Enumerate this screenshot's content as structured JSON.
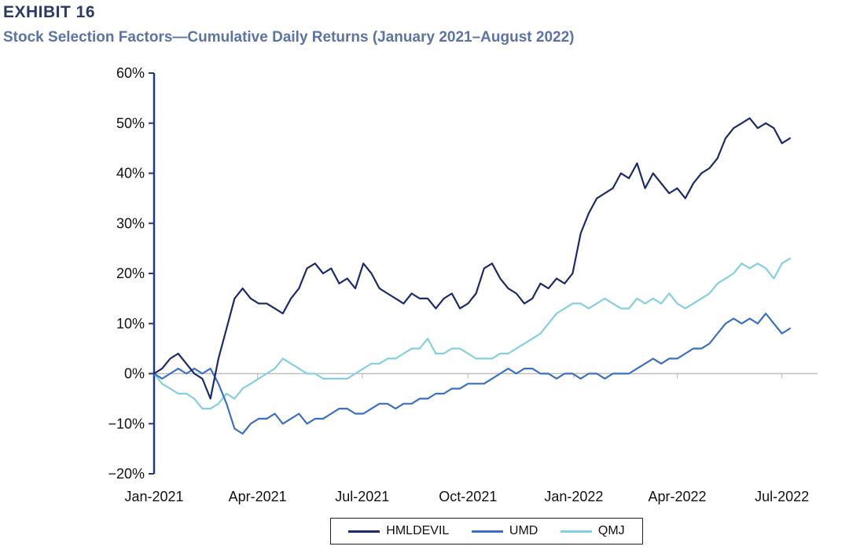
{
  "header": {
    "exhibit": "EXHIBIT 16",
    "subtitle": "Stock Selection Factors—Cumulative Daily Returns (January 2021–August 2022)"
  },
  "colors": {
    "HMLDEVIL": "#1b2a6b",
    "UMD": "#3a6fc4",
    "QMJ": "#84cfde",
    "axis": "#1f3a80",
    "zero_line": "#bfbfbf"
  },
  "chart_data": {
    "type": "line",
    "title": "Stock Selection Factors—Cumulative Daily Returns (January 2021–August 2022)",
    "xlabel": "",
    "ylabel": "",
    "ylim": [
      -20,
      60
    ],
    "y_ticks": [
      -20,
      -10,
      0,
      10,
      20,
      30,
      40,
      50,
      60
    ],
    "y_tick_labels": [
      "−20%",
      "−10%",
      "0%",
      "10%",
      "20%",
      "30%",
      "40%",
      "50%",
      "60%"
    ],
    "x_range": [
      "2021-01-01",
      "2022-08-01"
    ],
    "x_ticks": [
      "2021-01-01",
      "2021-04-01",
      "2021-07-01",
      "2021-10-01",
      "2022-01-01",
      "2022-04-01",
      "2022-07-01"
    ],
    "x_tick_labels": [
      "Jan-2021",
      "Apr-2021",
      "Jul-2021",
      "Oct-2021",
      "Jan-2022",
      "Apr-2022",
      "Jul-2022"
    ],
    "legend": "bottom-center",
    "series": [
      {
        "name": "HMLDEVIL",
        "x": [
          "2021-01-01",
          "2021-01-08",
          "2021-01-15",
          "2021-01-22",
          "2021-01-29",
          "2021-02-05",
          "2021-02-12",
          "2021-02-19",
          "2021-02-26",
          "2021-03-05",
          "2021-03-12",
          "2021-03-19",
          "2021-03-26",
          "2021-04-02",
          "2021-04-09",
          "2021-04-16",
          "2021-04-23",
          "2021-04-30",
          "2021-05-07",
          "2021-05-14",
          "2021-05-21",
          "2021-05-28",
          "2021-06-04",
          "2021-06-11",
          "2021-06-18",
          "2021-06-25",
          "2021-07-02",
          "2021-07-09",
          "2021-07-16",
          "2021-07-23",
          "2021-07-30",
          "2021-08-06",
          "2021-08-13",
          "2021-08-20",
          "2021-08-27",
          "2021-09-03",
          "2021-09-10",
          "2021-09-17",
          "2021-09-24",
          "2021-10-01",
          "2021-10-08",
          "2021-10-15",
          "2021-10-22",
          "2021-10-29",
          "2021-11-05",
          "2021-11-12",
          "2021-11-19",
          "2021-11-26",
          "2021-12-03",
          "2021-12-10",
          "2021-12-17",
          "2021-12-24",
          "2021-12-31",
          "2022-01-07",
          "2022-01-14",
          "2022-01-21",
          "2022-01-28",
          "2022-02-04",
          "2022-02-11",
          "2022-02-18",
          "2022-02-25",
          "2022-03-04",
          "2022-03-11",
          "2022-03-18",
          "2022-03-25",
          "2022-04-01",
          "2022-04-08",
          "2022-04-15",
          "2022-04-22",
          "2022-04-29",
          "2022-05-06",
          "2022-05-13",
          "2022-05-20",
          "2022-05-27",
          "2022-06-03",
          "2022-06-10",
          "2022-06-17",
          "2022-06-24",
          "2022-07-01",
          "2022-07-08"
        ],
        "values": [
          0,
          1,
          3,
          4,
          2,
          0,
          -1,
          -5,
          3,
          9,
          15,
          17,
          15,
          14,
          14,
          13,
          12,
          15,
          17,
          21,
          22,
          20,
          21,
          18,
          19,
          17,
          22,
          20,
          17,
          16,
          15,
          14,
          16,
          15,
          15,
          13,
          15,
          16,
          13,
          14,
          16,
          21,
          22,
          19,
          17,
          16,
          14,
          15,
          18,
          17,
          19,
          18,
          20,
          28,
          32,
          35,
          36,
          37,
          40,
          39,
          42,
          37,
          40,
          38,
          36,
          37,
          35,
          38,
          40,
          41,
          43,
          47,
          49,
          50,
          51,
          49,
          50,
          49,
          46,
          47
        ]
      },
      {
        "name": "UMD",
        "x": [
          "2021-01-01",
          "2021-01-08",
          "2021-01-15",
          "2021-01-22",
          "2021-01-29",
          "2021-02-05",
          "2021-02-12",
          "2021-02-19",
          "2021-02-26",
          "2021-03-05",
          "2021-03-12",
          "2021-03-19",
          "2021-03-26",
          "2021-04-02",
          "2021-04-09",
          "2021-04-16",
          "2021-04-23",
          "2021-04-30",
          "2021-05-07",
          "2021-05-14",
          "2021-05-21",
          "2021-05-28",
          "2021-06-04",
          "2021-06-11",
          "2021-06-18",
          "2021-06-25",
          "2021-07-02",
          "2021-07-09",
          "2021-07-16",
          "2021-07-23",
          "2021-07-30",
          "2021-08-06",
          "2021-08-13",
          "2021-08-20",
          "2021-08-27",
          "2021-09-03",
          "2021-09-10",
          "2021-09-17",
          "2021-09-24",
          "2021-10-01",
          "2021-10-08",
          "2021-10-15",
          "2021-10-22",
          "2021-10-29",
          "2021-11-05",
          "2021-11-12",
          "2021-11-19",
          "2021-11-26",
          "2021-12-03",
          "2021-12-10",
          "2021-12-17",
          "2021-12-24",
          "2021-12-31",
          "2022-01-07",
          "2022-01-14",
          "2022-01-21",
          "2022-01-28",
          "2022-02-04",
          "2022-02-11",
          "2022-02-18",
          "2022-02-25",
          "2022-03-04",
          "2022-03-11",
          "2022-03-18",
          "2022-03-25",
          "2022-04-01",
          "2022-04-08",
          "2022-04-15",
          "2022-04-22",
          "2022-04-29",
          "2022-05-06",
          "2022-05-13",
          "2022-05-20",
          "2022-05-27",
          "2022-06-03",
          "2022-06-10",
          "2022-06-17",
          "2022-06-24",
          "2022-07-01",
          "2022-07-08"
        ],
        "values": [
          0,
          -1,
          0,
          1,
          0,
          1,
          0,
          1,
          -2,
          -6,
          -11,
          -12,
          -10,
          -9,
          -9,
          -8,
          -10,
          -9,
          -8,
          -10,
          -9,
          -9,
          -8,
          -7,
          -7,
          -8,
          -8,
          -7,
          -6,
          -6,
          -7,
          -6,
          -6,
          -5,
          -5,
          -4,
          -4,
          -3,
          -3,
          -2,
          -2,
          -2,
          -1,
          0,
          1,
          0,
          1,
          1,
          0,
          0,
          -1,
          0,
          0,
          -1,
          0,
          0,
          -1,
          0,
          0,
          0,
          1,
          2,
          3,
          2,
          3,
          3,
          4,
          5,
          5,
          6,
          8,
          10,
          11,
          10,
          11,
          10,
          12,
          10,
          8,
          9
        ]
      },
      {
        "name": "QMJ",
        "x": [
          "2021-01-01",
          "2021-01-08",
          "2021-01-15",
          "2021-01-22",
          "2021-01-29",
          "2021-02-05",
          "2021-02-12",
          "2021-02-19",
          "2021-02-26",
          "2021-03-05",
          "2021-03-12",
          "2021-03-19",
          "2021-03-26",
          "2021-04-02",
          "2021-04-09",
          "2021-04-16",
          "2021-04-23",
          "2021-04-30",
          "2021-05-07",
          "2021-05-14",
          "2021-05-21",
          "2021-05-28",
          "2021-06-04",
          "2021-06-11",
          "2021-06-18",
          "2021-06-25",
          "2021-07-02",
          "2021-07-09",
          "2021-07-16",
          "2021-07-23",
          "2021-07-30",
          "2021-08-06",
          "2021-08-13",
          "2021-08-20",
          "2021-08-27",
          "2021-09-03",
          "2021-09-10",
          "2021-09-17",
          "2021-09-24",
          "2021-10-01",
          "2021-10-08",
          "2021-10-15",
          "2021-10-22",
          "2021-10-29",
          "2021-11-05",
          "2021-11-12",
          "2021-11-19",
          "2021-11-26",
          "2021-12-03",
          "2021-12-10",
          "2021-12-17",
          "2021-12-24",
          "2021-12-31",
          "2022-01-07",
          "2022-01-14",
          "2022-01-21",
          "2022-01-28",
          "2022-02-04",
          "2022-02-11",
          "2022-02-18",
          "2022-02-25",
          "2022-03-04",
          "2022-03-11",
          "2022-03-18",
          "2022-03-25",
          "2022-04-01",
          "2022-04-08",
          "2022-04-15",
          "2022-04-22",
          "2022-04-29",
          "2022-05-06",
          "2022-05-13",
          "2022-05-20",
          "2022-05-27",
          "2022-06-03",
          "2022-06-10",
          "2022-06-17",
          "2022-06-24",
          "2022-07-01",
          "2022-07-08"
        ],
        "values": [
          0,
          -2,
          -3,
          -4,
          -4,
          -5,
          -7,
          -7,
          -6,
          -4,
          -5,
          -3,
          -2,
          -1,
          0,
          1,
          3,
          2,
          1,
          0,
          0,
          -1,
          -1,
          -1,
          -1,
          0,
          1,
          2,
          2,
          3,
          3,
          4,
          5,
          5,
          7,
          4,
          4,
          5,
          5,
          4,
          3,
          3,
          3,
          4,
          4,
          5,
          6,
          7,
          8,
          10,
          12,
          13,
          14,
          14,
          13,
          14,
          15,
          14,
          13,
          13,
          15,
          14,
          15,
          14,
          16,
          14,
          13,
          14,
          15,
          16,
          18,
          19,
          20,
          22,
          21,
          22,
          21,
          19,
          22,
          23
        ]
      }
    ]
  }
}
